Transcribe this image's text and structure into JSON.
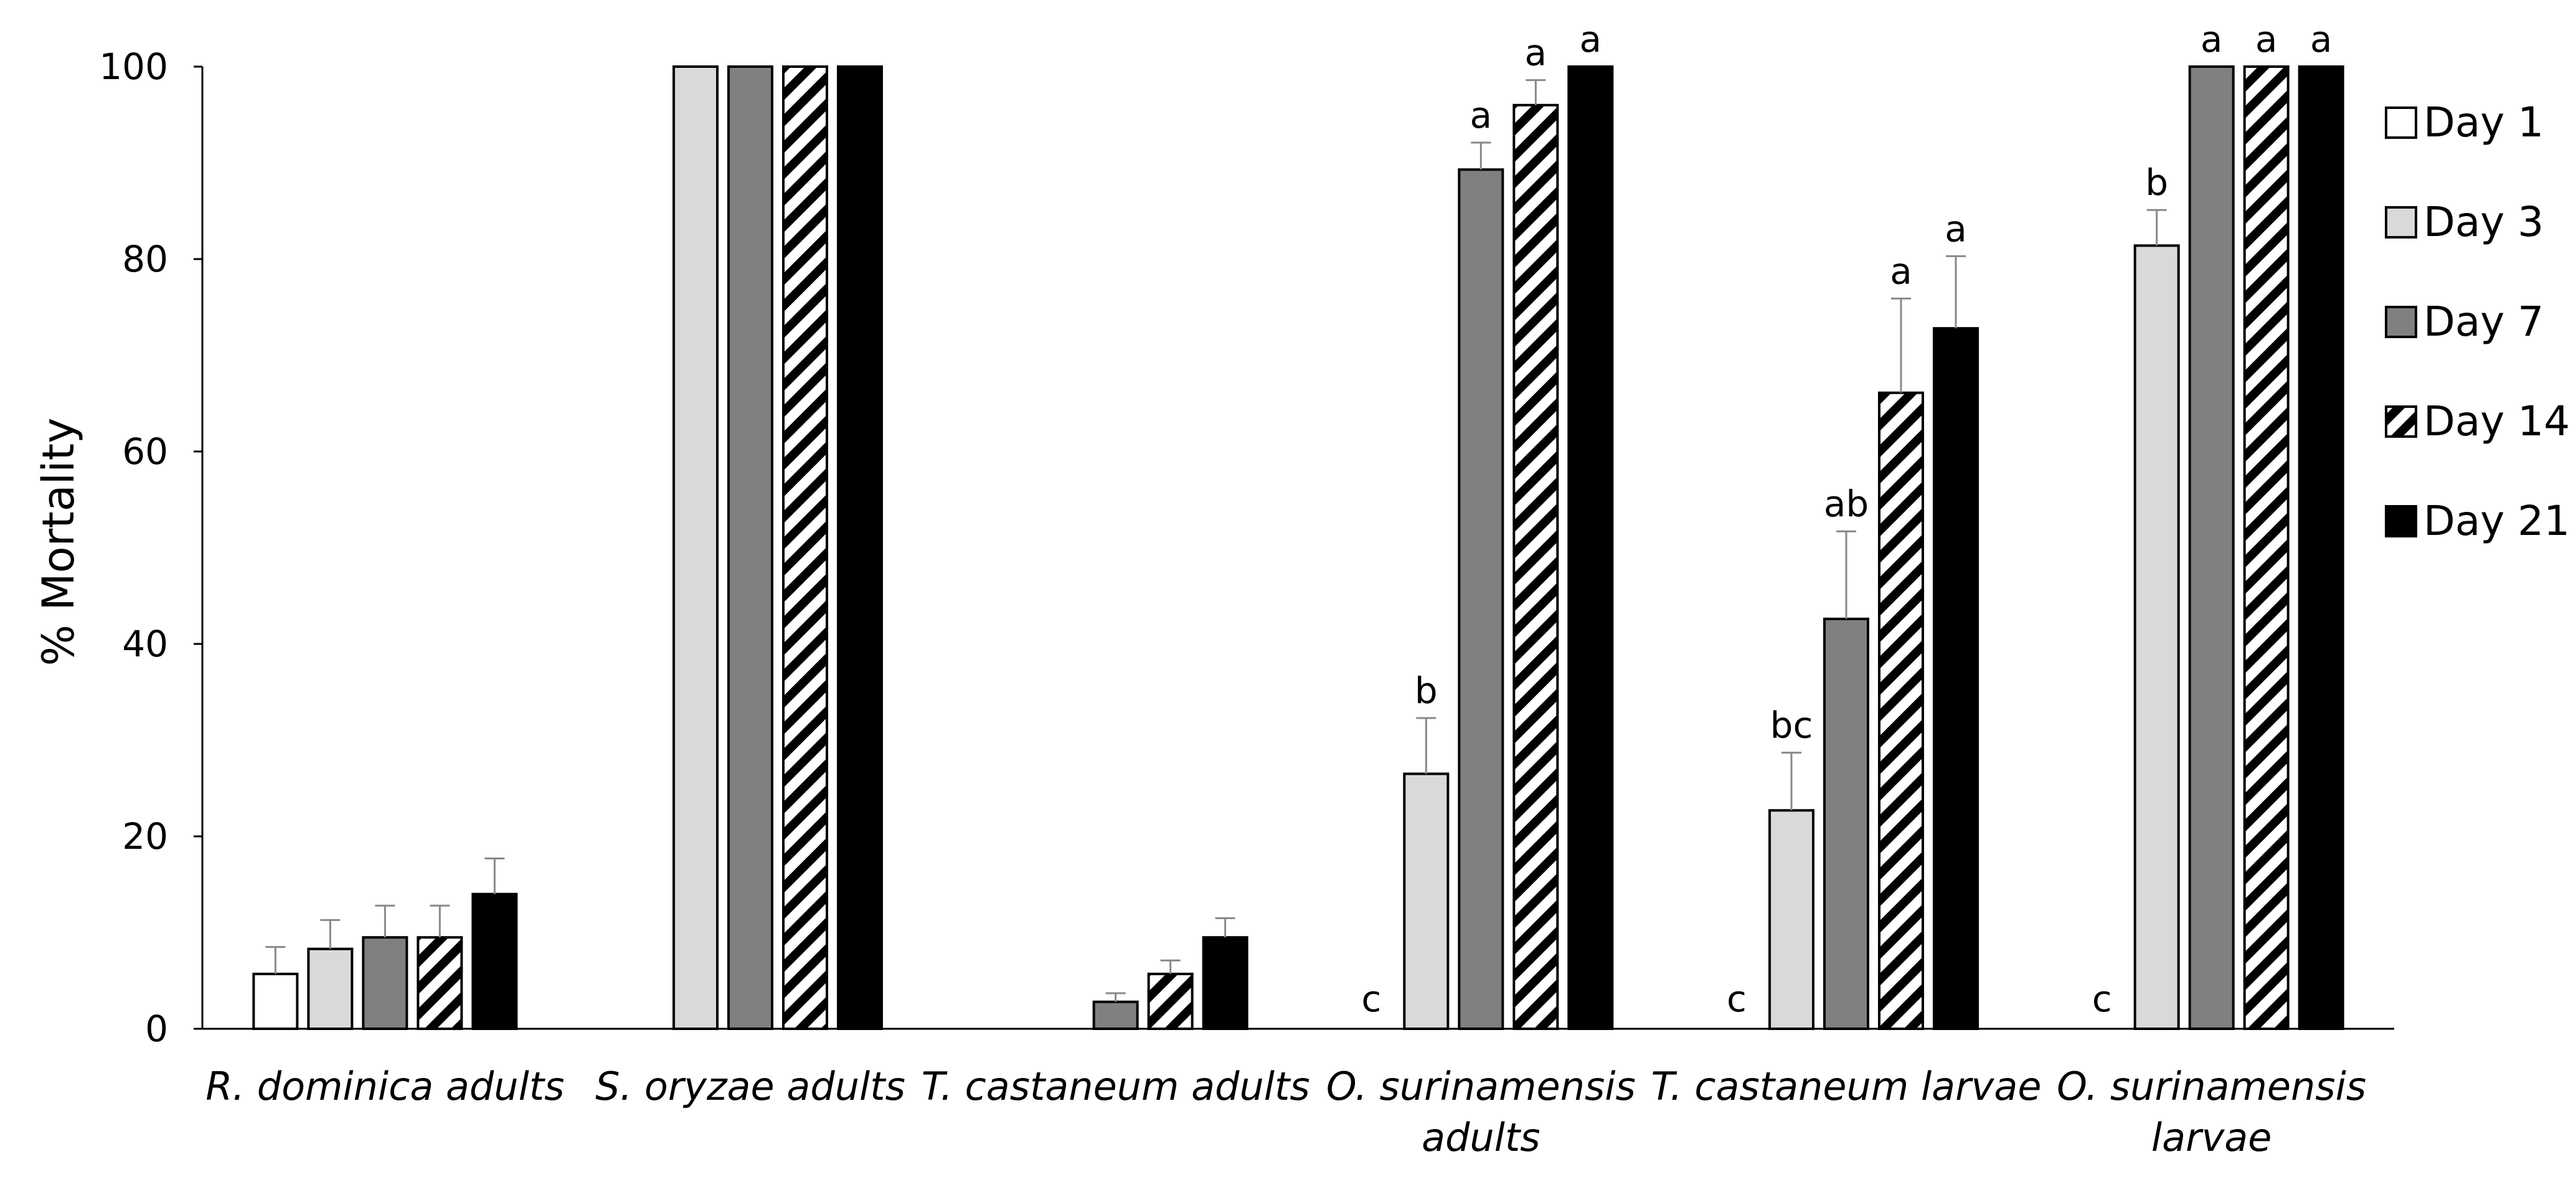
{
  "chart_data": {
    "type": "bar",
    "title": "",
    "xlabel": "",
    "ylabel": "% Mortality",
    "ylim": [
      0,
      100
    ],
    "yticks": [
      0,
      20,
      40,
      60,
      80,
      100
    ],
    "legend_position": "right",
    "categories": [
      [
        "R. dominica adults"
      ],
      [
        "S. oryzae adults"
      ],
      [
        "T. castaneum adults"
      ],
      [
        "O. surinamensis",
        "adults"
      ],
      [
        "T. castaneum larvae"
      ],
      [
        "O. surinamensis",
        "larvae"
      ]
    ],
    "series": [
      {
        "name": "Day 1",
        "fill": "#ffffff",
        "pattern": "none",
        "values": [
          5.7,
          0,
          0,
          0,
          0,
          0
        ],
        "errors": [
          2.8,
          0,
          0,
          0,
          0,
          0
        ]
      },
      {
        "name": "Day 3",
        "fill": "#d9d9d9",
        "pattern": "none",
        "values": [
          8.3,
          100,
          0,
          26.5,
          22.7,
          81.4
        ],
        "errors": [
          3.0,
          0,
          0,
          5.8,
          6.0,
          3.7
        ]
      },
      {
        "name": "Day 7",
        "fill": "#808080",
        "pattern": "none",
        "values": [
          9.5,
          100,
          2.8,
          89.3,
          42.6,
          100
        ],
        "errors": [
          3.3,
          0,
          0.9,
          2.8,
          9.1,
          0
        ]
      },
      {
        "name": "Day 14",
        "fill": "#ffffff",
        "pattern": "hatch",
        "values": [
          9.5,
          100,
          5.7,
          96.0,
          66.1,
          100
        ],
        "errors": [
          3.3,
          0,
          1.4,
          2.6,
          9.8,
          0
        ]
      },
      {
        "name": "Day 21",
        "fill": "#000000",
        "pattern": "none",
        "values": [
          14.0,
          100,
          9.5,
          100,
          72.8,
          100
        ],
        "errors": [
          3.7,
          0,
          2.0,
          0,
          7.5,
          0
        ]
      }
    ],
    "significance_letters": [
      [
        null,
        null,
        null,
        null,
        null
      ],
      [
        null,
        null,
        null,
        null,
        null
      ],
      [
        null,
        null,
        null,
        null,
        null
      ],
      [
        "c",
        "b",
        "a",
        "a",
        "a"
      ],
      [
        "c",
        "bc",
        "ab",
        "a",
        "a"
      ],
      [
        "c",
        "b",
        "a",
        "a",
        "a"
      ]
    ]
  }
}
